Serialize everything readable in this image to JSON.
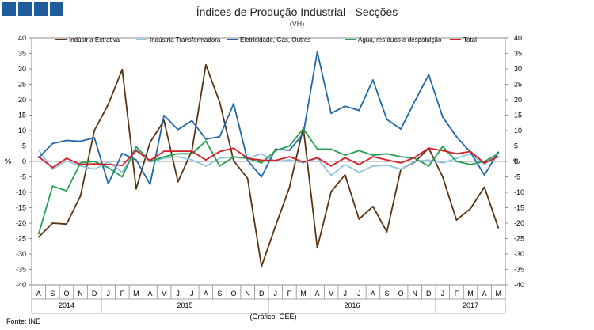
{
  "header": {
    "title": "Índices de Produção Industrial - Secções",
    "subtitle": "(VH)",
    "logo": {
      "icon": "ine-logo-squares",
      "color": "#1f5d9a"
    }
  },
  "footer": {
    "source": "Fonte: INE",
    "credit": "(Gráfico: GEE)"
  },
  "chart_data": {
    "type": "line",
    "title": "Índices de Produção Industrial - Secções",
    "subtitle": "(VH)",
    "ylabel": "%",
    "ylabel_right": "%",
    "ylim": [
      -40,
      40
    ],
    "yticks": [
      40,
      35,
      30,
      25,
      20,
      15,
      10,
      5,
      0,
      -5,
      -10,
      -15,
      -20,
      -25,
      -30,
      -35,
      -40
    ],
    "grid": false,
    "legend": "top",
    "months": [
      "A",
      "S",
      "O",
      "N",
      "D",
      "J",
      "F",
      "M",
      "A",
      "M",
      "J",
      "J",
      "A",
      "S",
      "O",
      "N",
      "D",
      "J",
      "F",
      "M",
      "A",
      "M",
      "J",
      "J",
      "A",
      "S",
      "O",
      "N",
      "D",
      "J",
      "F",
      "M",
      "A",
      "M"
    ],
    "years": [
      {
        "label": "2014",
        "start": 0,
        "end": 4
      },
      {
        "label": "2015",
        "start": 5,
        "end": 16
      },
      {
        "label": "2016",
        "start": 17,
        "end": 28
      },
      {
        "label": "2017",
        "start": 29,
        "end": 33
      }
    ],
    "series": [
      {
        "name": "Indústria Extrativa",
        "color": "#5a3311",
        "values": [
          -24.5,
          -20,
          -20.3,
          -11.2,
          10,
          18.5,
          29.8,
          -8.9,
          6.2,
          13.2,
          -6.6,
          3.5,
          31.3,
          19.2,
          0.2,
          -5.5,
          -34,
          -21,
          -8.5,
          11,
          -28,
          -9.8,
          -4.3,
          -18.7,
          -14.6,
          -22.8,
          -2.5,
          -0.2,
          4.3,
          -5,
          -19,
          -15.3,
          -8.3,
          -21.5
        ]
      },
      {
        "name": "Indústria Transformadora",
        "color": "#92c5e4",
        "values": [
          3.7,
          -2.5,
          0.2,
          -1.5,
          -2.5,
          -0.2,
          -3.5,
          4,
          -0.2,
          1,
          1.5,
          0.5,
          -1.5,
          1,
          1.5,
          1,
          2.5,
          0,
          0.5,
          -0.5,
          1,
          -4.5,
          -1,
          -3.5,
          -1.5,
          -1.2,
          -2.5,
          0,
          0.5,
          -0.5,
          1,
          2.5,
          -1,
          2.8
        ]
      },
      {
        "name": "Eletricidade, Gás, Outros",
        "color": "#2167a7",
        "values": [
          1.2,
          5.8,
          6.8,
          6.5,
          7.7,
          -7.2,
          2.6,
          0.5,
          -7.4,
          14.9,
          10.3,
          13.2,
          7.2,
          8,
          18.7,
          0.3,
          -5,
          4,
          3.6,
          9,
          35.5,
          15.6,
          17.9,
          16.5,
          26.4,
          13.6,
          10.5,
          19.5,
          28.1,
          14.4,
          8,
          3,
          -4.4,
          3
        ]
      },
      {
        "name": "Água, resíduos e despoluição",
        "color": "#27a055",
        "values": [
          -23.5,
          -8,
          -9.5,
          -0.5,
          0,
          -2,
          -5,
          4.8,
          0,
          1.5,
          2.5,
          2.5,
          6.6,
          -1.5,
          1.5,
          1,
          -0.5,
          3.5,
          5,
          10.6,
          4,
          4,
          2,
          3.5,
          2,
          2.5,
          1.5,
          1,
          -1.5,
          4.8,
          0,
          -1,
          0,
          2.5
        ]
      },
      {
        "name": "Total",
        "color": "#d21f26",
        "values": [
          1.5,
          -2,
          1,
          -1,
          -0.8,
          -1,
          -1.3,
          3.5,
          0.3,
          3.3,
          3.3,
          3.3,
          0.5,
          3.2,
          4.3,
          1,
          0.4,
          0.3,
          1.5,
          -0.2,
          1.2,
          -1.5,
          1.2,
          -1,
          1.5,
          0.5,
          -0.5,
          1.3,
          4.3,
          3.5,
          2.5,
          3.2,
          -0.5,
          1.5
        ]
      }
    ]
  }
}
